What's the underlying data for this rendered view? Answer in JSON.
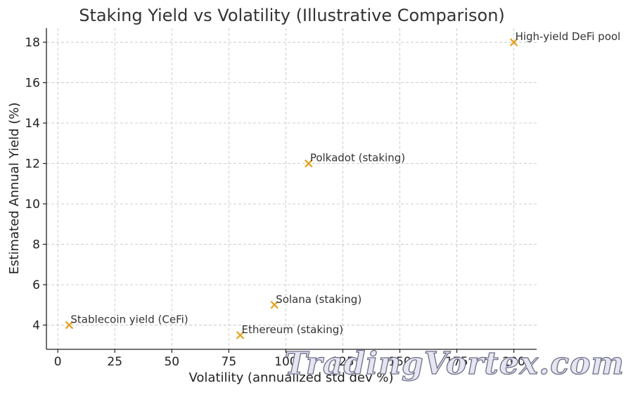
{
  "chart_data": {
    "type": "scatter",
    "title": "Staking Yield vs Volatility (Illustrative Comparison)",
    "xlabel": "Volatility (annualized std dev %)",
    "ylabel": "Estimated Annual Yield (%)",
    "xlim": [
      -5,
      210
    ],
    "ylim": [
      2.8,
      18.7
    ],
    "xticks": [
      0,
      25,
      50,
      75,
      100,
      125,
      150,
      175,
      200
    ],
    "yticks": [
      4,
      6,
      8,
      10,
      12,
      14,
      16,
      18
    ],
    "grid": true,
    "marker": "x",
    "marker_color": "#E6A01C",
    "points": [
      {
        "label": "Stablecoin yield (CeFi)",
        "x": 5,
        "y": 4
      },
      {
        "label": "Ethereum (staking)",
        "x": 80,
        "y": 3.5
      },
      {
        "label": "Solana (staking)",
        "x": 95,
        "y": 5
      },
      {
        "label": "Polkadot (staking)",
        "x": 110,
        "y": 12
      },
      {
        "label": "High-yield DeFi pool",
        "x": 200,
        "y": 18
      }
    ]
  },
  "watermark": "TradingVortex.com"
}
